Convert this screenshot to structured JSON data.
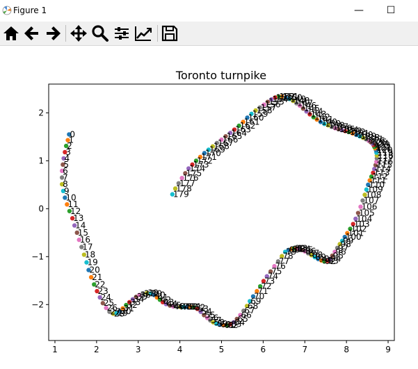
{
  "window": {
    "title": "Figure 1",
    "minimize_glyph": "—",
    "maximize_glyph": "☐"
  },
  "toolbar": {
    "buttons": [
      {
        "name": "home-icon"
      },
      {
        "name": "back-arrow-icon"
      },
      {
        "name": "forward-arrow-icon"
      },
      {
        "name": "pan-icon"
      },
      {
        "name": "zoom-icon"
      },
      {
        "name": "configure-subplots-icon"
      },
      {
        "name": "edit-axis-icon"
      },
      {
        "name": "save-icon"
      }
    ]
  },
  "chart_data": {
    "type": "scatter",
    "title": "Toronto turnpike",
    "xlabel": "",
    "ylabel": "",
    "xlim": [
      0.85,
      9.15
    ],
    "ylim": [
      -2.75,
      2.6
    ],
    "xticks": [
      1,
      2,
      3,
      4,
      5,
      6,
      7,
      8,
      9
    ],
    "yticks": [
      -2,
      -1,
      0,
      1,
      2
    ],
    "grid": false,
    "point_colors": [
      "#1f77b4",
      "#ff7f0e",
      "#2ca02c",
      "#d62728",
      "#9467bd",
      "#8c564b",
      "#e377c2",
      "#7f7f7f",
      "#bcbd22",
      "#17becf"
    ],
    "point_count": 180,
    "point_labels": "sequential index 0–179 next to each point",
    "x": [
      1.34,
      1.31,
      1.27,
      1.24,
      1.21,
      1.19,
      1.17,
      1.17,
      1.17,
      1.2,
      1.24,
      1.29,
      1.35,
      1.42,
      1.47,
      1.53,
      1.58,
      1.64,
      1.7,
      1.76,
      1.81,
      1.87,
      1.94,
      2.01,
      2.08,
      2.15,
      2.23,
      2.31,
      2.4,
      2.48,
      2.56,
      2.63,
      2.71,
      2.79,
      2.87,
      2.95,
      3.03,
      3.12,
      3.21,
      3.3,
      3.38,
      3.45,
      3.52,
      3.59,
      3.67,
      3.76,
      3.84,
      3.93,
      4.01,
      4.09,
      4.17,
      4.25,
      4.34,
      4.42,
      4.5,
      4.58,
      4.66,
      4.73,
      4.8,
      4.88,
      4.96,
      5.05,
      5.13,
      5.21,
      5.29,
      5.37,
      5.45,
      5.53,
      5.61,
      5.68,
      5.76,
      5.85,
      5.93,
      6.01,
      6.09,
      6.18,
      6.27,
      6.36,
      6.45,
      6.53,
      6.61,
      6.68,
      6.74,
      6.8,
      6.87,
      6.93,
      7,
      7.08,
      7.16,
      7.24,
      7.32,
      7.4,
      7.47,
      7.54,
      7.6,
      7.66,
      7.72,
      7.78,
      7.84,
      7.9,
      7.96,
      8.02,
      8.09,
      8.16,
      8.22,
      8.28,
      8.34,
      8.39,
      8.44,
      8.48,
      8.52,
      8.56,
      8.6,
      8.64,
      8.67,
      8.7,
      8.72,
      8.73,
      8.73,
      8.72,
      8.71,
      8.69,
      8.67,
      8.65,
      8.62,
      8.58,
      8.53,
      8.47,
      8.4,
      8.32,
      8.24,
      8.15,
      8.06,
      7.97,
      7.89,
      7.81,
      7.73,
      7.65,
      7.56,
      7.47,
      7.38,
      7.29,
      7.21,
      7.12,
      7.04,
      6.96,
      6.88,
      6.8,
      6.72,
      6.63,
      6.54,
      6.45,
      6.37,
      6.29,
      6.2,
      6.11,
      6.02,
      5.92,
      5.82,
      5.72,
      5.62,
      5.52,
      5.42,
      5.31,
      5.21,
      5.1,
      5,
      4.89,
      4.79,
      4.69,
      4.59,
      4.49,
      4.39,
      4.3,
      4.21,
      4.13,
      4.05,
      3.97,
      3.89,
      3.82
    ],
    "y": [
      1.55,
      1.43,
      1.31,
      1.18,
      1.05,
      0.92,
      0.79,
      0.65,
      0.51,
      0.37,
      0.23,
      0.09,
      -0.05,
      -0.2,
      -0.35,
      -0.5,
      -0.65,
      -0.8,
      -0.96,
      -1.12,
      -1.28,
      -1.43,
      -1.58,
      -1.72,
      -1.85,
      -1.97,
      -2.07,
      -2.15,
      -2.19,
      -2.18,
      -2.14,
      -2.08,
      -2.01,
      -1.95,
      -1.89,
      -1.84,
      -1.8,
      -1.77,
      -1.76,
      -1.77,
      -1.8,
      -1.85,
      -1.9,
      -1.95,
      -1.99,
      -2.02,
      -2.04,
      -2.05,
      -2.05,
      -2.05,
      -2.05,
      -2.05,
      -2.06,
      -2.09,
      -2.15,
      -2.22,
      -2.28,
      -2.33,
      -2.37,
      -2.4,
      -2.42,
      -2.43,
      -2.43,
      -2.41,
      -2.37,
      -2.3,
      -2.22,
      -2.13,
      -2.03,
      -1.93,
      -1.83,
      -1.72,
      -1.62,
      -1.51,
      -1.41,
      -1.31,
      -1.2,
      -1.1,
      -0.99,
      -0.9,
      -0.86,
      -0.84,
      -0.83,
      -0.83,
      -0.84,
      -0.86,
      -0.89,
      -0.93,
      -0.97,
      -1.01,
      -1.05,
      -1.08,
      -1.1,
      -1.09,
      -1.05,
      -0.98,
      -0.9,
      -0.82,
      -0.74,
      -0.67,
      -0.59,
      -0.51,
      -0.42,
      -0.32,
      -0.21,
      -0.09,
      0.04,
      0.17,
      0.29,
      0.4,
      0.5,
      0.59,
      0.67,
      0.75,
      0.83,
      0.91,
      0.98,
      1.05,
      1.11,
      1.17,
      1.22,
      1.26,
      1.29,
      1.33,
      1.36,
      1.39,
      1.42,
      1.45,
      1.48,
      1.51,
      1.54,
      1.57,
      1.6,
      1.62,
      1.64,
      1.66,
      1.68,
      1.71,
      1.74,
      1.77,
      1.81,
      1.86,
      1.91,
      1.97,
      2.03,
      2.09,
      2.15,
      2.2,
      2.25,
      2.29,
      2.32,
      2.34,
      2.34,
      2.32,
      2.28,
      2.23,
      2.17,
      2.11,
      2.05,
      1.98,
      1.9,
      1.81,
      1.73,
      1.65,
      1.58,
      1.51,
      1.44,
      1.37,
      1.3,
      1.23,
      1.16,
      1.08,
      1,
      0.92,
      0.84,
      0.74,
      0.64,
      0.53,
      0.42,
      0.3
    ]
  }
}
